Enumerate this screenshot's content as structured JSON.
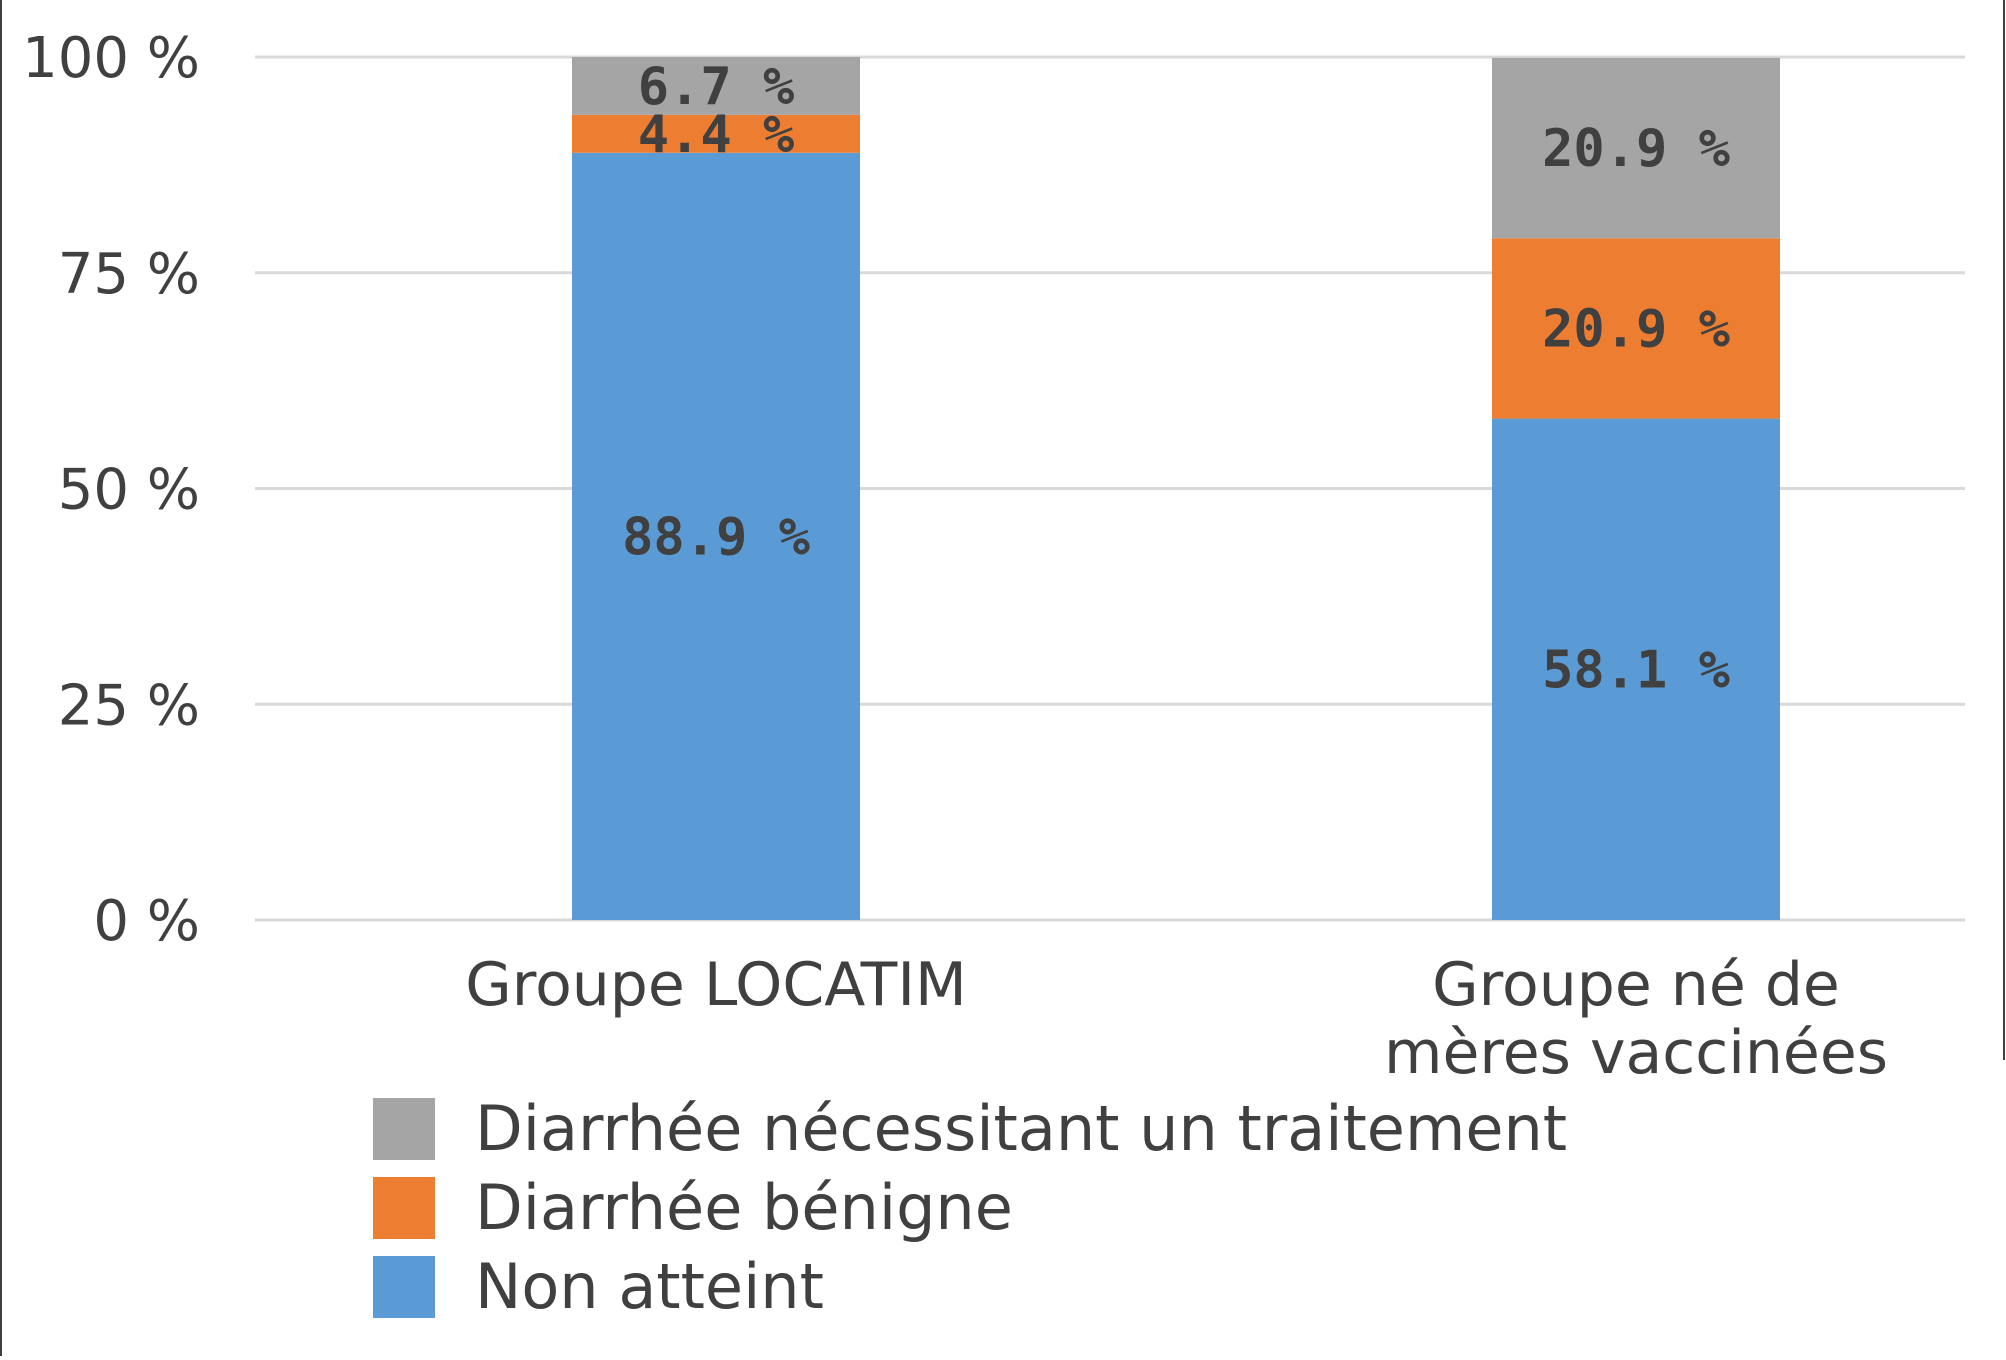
{
  "chart_data": {
    "type": "bar",
    "stacked": true,
    "categories": [
      [
        "Groupe LOCATIM"
      ],
      [
        "Groupe né de",
        "mères vaccinées"
      ]
    ],
    "series": [
      {
        "name": "Non atteint",
        "values": [
          88.9,
          58.1
        ],
        "labels": [
          "88.9 %",
          "58.1 %"
        ],
        "color": "#5B9BD5"
      },
      {
        "name": "Diarrhée bénigne",
        "values": [
          4.4,
          20.9
        ],
        "labels": [
          "4.4 %",
          "20.9 %"
        ],
        "color": "#ED7D31"
      },
      {
        "name": "Diarrhée nécessitant un traitement",
        "values": [
          6.7,
          20.9
        ],
        "labels": [
          "6.7 %",
          "20.9 %"
        ],
        "color": "#A5A5A5"
      }
    ],
    "ylim": [
      0,
      100
    ],
    "yticks": [
      0,
      25,
      50,
      75,
      100
    ],
    "ytick_labels": [
      "0 %",
      "25 %",
      "50 %",
      "75 %",
      "100 %"
    ],
    "grid": true,
    "gridline_color": "#D9D9D9",
    "legend_position": "bottom",
    "legend_order": [
      "Diarrhée nécessitant un traitement",
      "Diarrhée bénigne",
      "Non atteint"
    ]
  }
}
